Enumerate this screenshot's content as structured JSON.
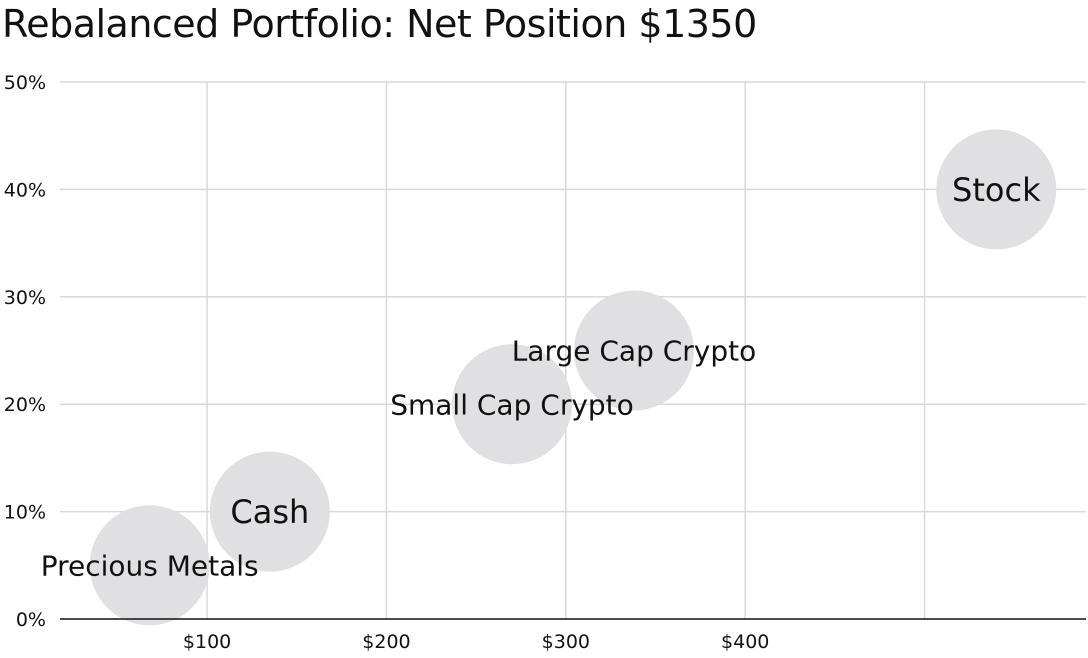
{
  "chart_data": {
    "type": "scatter",
    "title": "Rebalanced Portfolio: Net Position $1350",
    "xlabel": "",
    "ylabel": "",
    "x_ticks": [
      {
        "value": 100,
        "label": "$100"
      },
      {
        "value": 200,
        "label": "$200"
      },
      {
        "value": 300,
        "label": "$300"
      },
      {
        "value": 400,
        "label": "$400"
      },
      {
        "value": 500,
        "label": ""
      }
    ],
    "y_ticks": [
      {
        "value": 0,
        "label": "0%"
      },
      {
        "value": 10,
        "label": "10%"
      },
      {
        "value": 20,
        "label": "20%"
      },
      {
        "value": 30,
        "label": "30%"
      },
      {
        "value": 40,
        "label": "40%"
      },
      {
        "value": 50,
        "label": "50%"
      }
    ],
    "xlim": [
      18,
      590
    ],
    "ylim": [
      0,
      50
    ],
    "grid": true,
    "points": [
      {
        "label": "Precious Metals",
        "x": 68,
        "y": 5
      },
      {
        "label": "Cash",
        "x": 135,
        "y": 10
      },
      {
        "label": "Small Cap Crypto",
        "x": 270,
        "y": 20
      },
      {
        "label": "Large Cap Crypto",
        "x": 338,
        "y": 25
      },
      {
        "label": "Stock",
        "x": 540,
        "y": 40
      }
    ],
    "colors": {
      "bubble": "#e0e0e2",
      "grid": "#d9d9d9",
      "axis": "#111111"
    }
  }
}
